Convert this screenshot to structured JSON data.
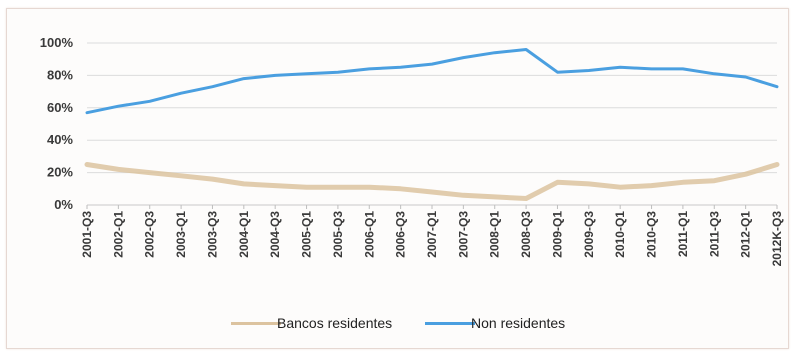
{
  "chart_data": {
    "type": "line",
    "title": "",
    "xlabel": "",
    "ylabel": "",
    "ylim": [
      0,
      100
    ],
    "yticks": [
      "0%",
      "20%",
      "40%",
      "60%",
      "80%",
      "100%"
    ],
    "categories": [
      "2001-Q3",
      "2002-Q1",
      "2002-Q3",
      "2003-Q1",
      "2003-Q3",
      "2004-Q1",
      "2004-Q3",
      "2005-Q1",
      "2005-Q3",
      "2006-Q1",
      "2006-Q3",
      "2007-Q1",
      "2007-Q3",
      "2008-Q1",
      "2008-Q3",
      "2009-Q1",
      "2009-Q3",
      "2010-Q1",
      "2010-Q3",
      "2011-Q1",
      "2011-Q3",
      "2012-Q1",
      "2012K-Q3"
    ],
    "grid": true,
    "legend_position": "bottom",
    "series": [
      {
        "name": "Bancos residentes",
        "color": "#dcc39f",
        "values": [
          25,
          22,
          20,
          18,
          16,
          13,
          12,
          11,
          11,
          11,
          10,
          8,
          6,
          5,
          4,
          14,
          13,
          11,
          12,
          14,
          15,
          19,
          25
        ]
      },
      {
        "name": "Non residentes",
        "color": "#4a9fe0",
        "values": [
          57,
          61,
          64,
          69,
          73,
          78,
          80,
          81,
          82,
          84,
          85,
          87,
          91,
          94,
          96,
          82,
          83,
          85,
          84,
          84,
          81,
          79,
          73
        ]
      }
    ]
  }
}
